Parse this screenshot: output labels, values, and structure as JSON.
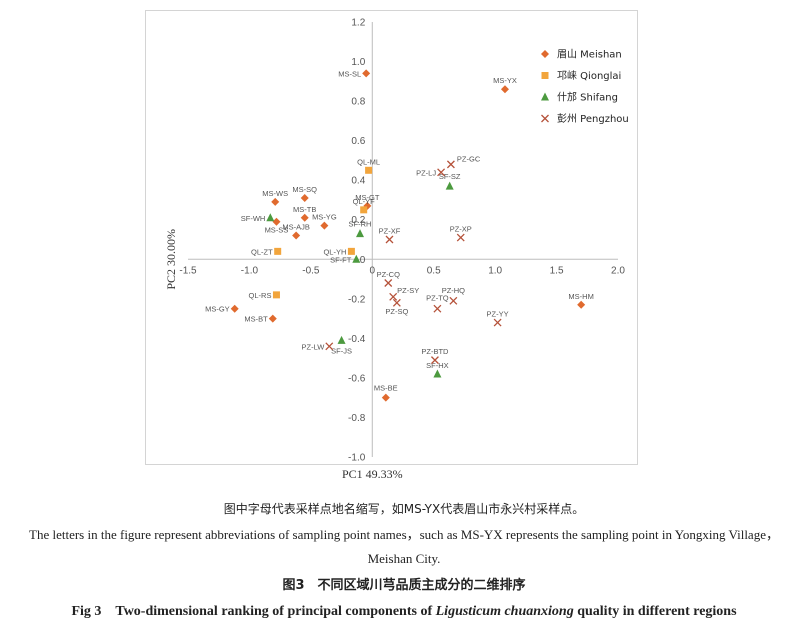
{
  "chart_data": {
    "type": "scatter",
    "xlabel": "PC1 49.33%",
    "ylabel": "PC2 30.00%",
    "xlim": [
      -1.5,
      2.0
    ],
    "ylim": [
      -1.0,
      1.2
    ],
    "xticks": [
      -1.5,
      -1.0,
      -0.5,
      0,
      0.5,
      1.0,
      1.5,
      2.0
    ],
    "yticks": [
      -1.0,
      -0.8,
      -0.6,
      -0.4,
      -0.2,
      0,
      0.2,
      0.4,
      0.6,
      0.8,
      1.0,
      1.2
    ],
    "xtick_labels": [
      "-1.5",
      "-1.0",
      "-0.5",
      "0",
      "0.5",
      "1.0",
      "1.5",
      "2.0"
    ],
    "ytick_labels": [
      "-1.0",
      "-0.8",
      "-0.6",
      "-0.4",
      "-0.2",
      "0",
      "0.2",
      "0.4",
      "0.6",
      "0.8",
      "1.0",
      "1.2"
    ],
    "legend_position": "top-right",
    "grid": false,
    "series": [
      {
        "name": "眉山 Meishan",
        "marker": "diamond",
        "color": "#E06A2E",
        "points": [
          {
            "label": "MS-SL",
            "x": -0.05,
            "y": 0.94
          },
          {
            "label": "MS-YX",
            "x": 1.08,
            "y": 0.86
          },
          {
            "label": "MS-WS",
            "x": -0.79,
            "y": 0.29
          },
          {
            "label": "MS-SQ",
            "x": -0.55,
            "y": 0.31
          },
          {
            "label": "MS-GT",
            "x": -0.04,
            "y": 0.27
          },
          {
            "label": "MS-TB",
            "x": -0.55,
            "y": 0.21
          },
          {
            "label": "MS-SS",
            "x": -0.78,
            "y": 0.19
          },
          {
            "label": "MS-YG",
            "x": -0.39,
            "y": 0.17
          },
          {
            "label": "MS-AJB",
            "x": -0.62,
            "y": 0.12
          },
          {
            "label": "MS-HM",
            "x": 1.7,
            "y": -0.23
          },
          {
            "label": "MS-GY",
            "x": -1.12,
            "y": -0.25
          },
          {
            "label": "MS-BT",
            "x": -0.81,
            "y": -0.3
          },
          {
            "label": "MS-BE",
            "x": 0.11,
            "y": -0.7
          }
        ]
      },
      {
        "name": "邛崃 Qionglai",
        "marker": "square",
        "color": "#F2A53C",
        "points": [
          {
            "label": "QL-ML",
            "x": -0.03,
            "y": 0.45
          },
          {
            "label": "QL-YF",
            "x": -0.07,
            "y": 0.25
          },
          {
            "label": "QL-ZT",
            "x": -0.77,
            "y": 0.04
          },
          {
            "label": "QL-YH",
            "x": -0.17,
            "y": 0.04
          },
          {
            "label": "QL-RS",
            "x": -0.78,
            "y": -0.18
          }
        ]
      },
      {
        "name": "什邡 Shifang",
        "marker": "triangle",
        "color": "#4C9A3F",
        "points": [
          {
            "label": "SF-SZ",
            "x": 0.63,
            "y": 0.37
          },
          {
            "label": "SF-WH",
            "x": -0.83,
            "y": 0.21
          },
          {
            "label": "SF-RH",
            "x": -0.1,
            "y": 0.13
          },
          {
            "label": "SF-FT",
            "x": -0.13,
            "y": 0.0
          },
          {
            "label": "SF-JS",
            "x": -0.25,
            "y": -0.41
          },
          {
            "label": "SF-HX",
            "x": 0.53,
            "y": -0.58
          }
        ]
      },
      {
        "name": "彭州 Pengzhou",
        "marker": "cross",
        "color": "#B5523A",
        "points": [
          {
            "label": "PZ-GC",
            "x": 0.64,
            "y": 0.48
          },
          {
            "label": "PZ-LJ",
            "x": 0.56,
            "y": 0.44
          },
          {
            "label": "PZ-XF",
            "x": 0.14,
            "y": 0.1
          },
          {
            "label": "PZ-XP",
            "x": 0.72,
            "y": 0.11
          },
          {
            "label": "PZ-CQ",
            "x": 0.13,
            "y": -0.12
          },
          {
            "label": "PZ-SY",
            "x": 0.17,
            "y": -0.19
          },
          {
            "label": "PZ-HQ",
            "x": 0.66,
            "y": -0.21
          },
          {
            "label": "PZ-SQ",
            "x": 0.2,
            "y": -0.22
          },
          {
            "label": "PZ-TQ",
            "x": 0.53,
            "y": -0.25
          },
          {
            "label": "PZ-YY",
            "x": 1.02,
            "y": -0.32
          },
          {
            "label": "PZ-LW",
            "x": -0.35,
            "y": -0.44
          },
          {
            "label": "PZ-BTD",
            "x": 0.51,
            "y": -0.51
          }
        ]
      }
    ]
  },
  "captions": {
    "note_cn": "图中字母代表采样点地名缩写，如MS-YX代表眉山市永兴村采样点。",
    "note_en": "The letters in the figure represent abbreviations of sampling point names，such as MS-YX represents the sampling point in Yongxing Village，Meishan City.",
    "title_cn": "图3　不同区域川芎品质主成分的二维排序",
    "title_en_prefix": "Fig 3　Two-dimensional ranking of principal components of ",
    "title_en_species": "Ligusticum chuanxiong",
    "title_en_suffix": " quality in different regions"
  }
}
